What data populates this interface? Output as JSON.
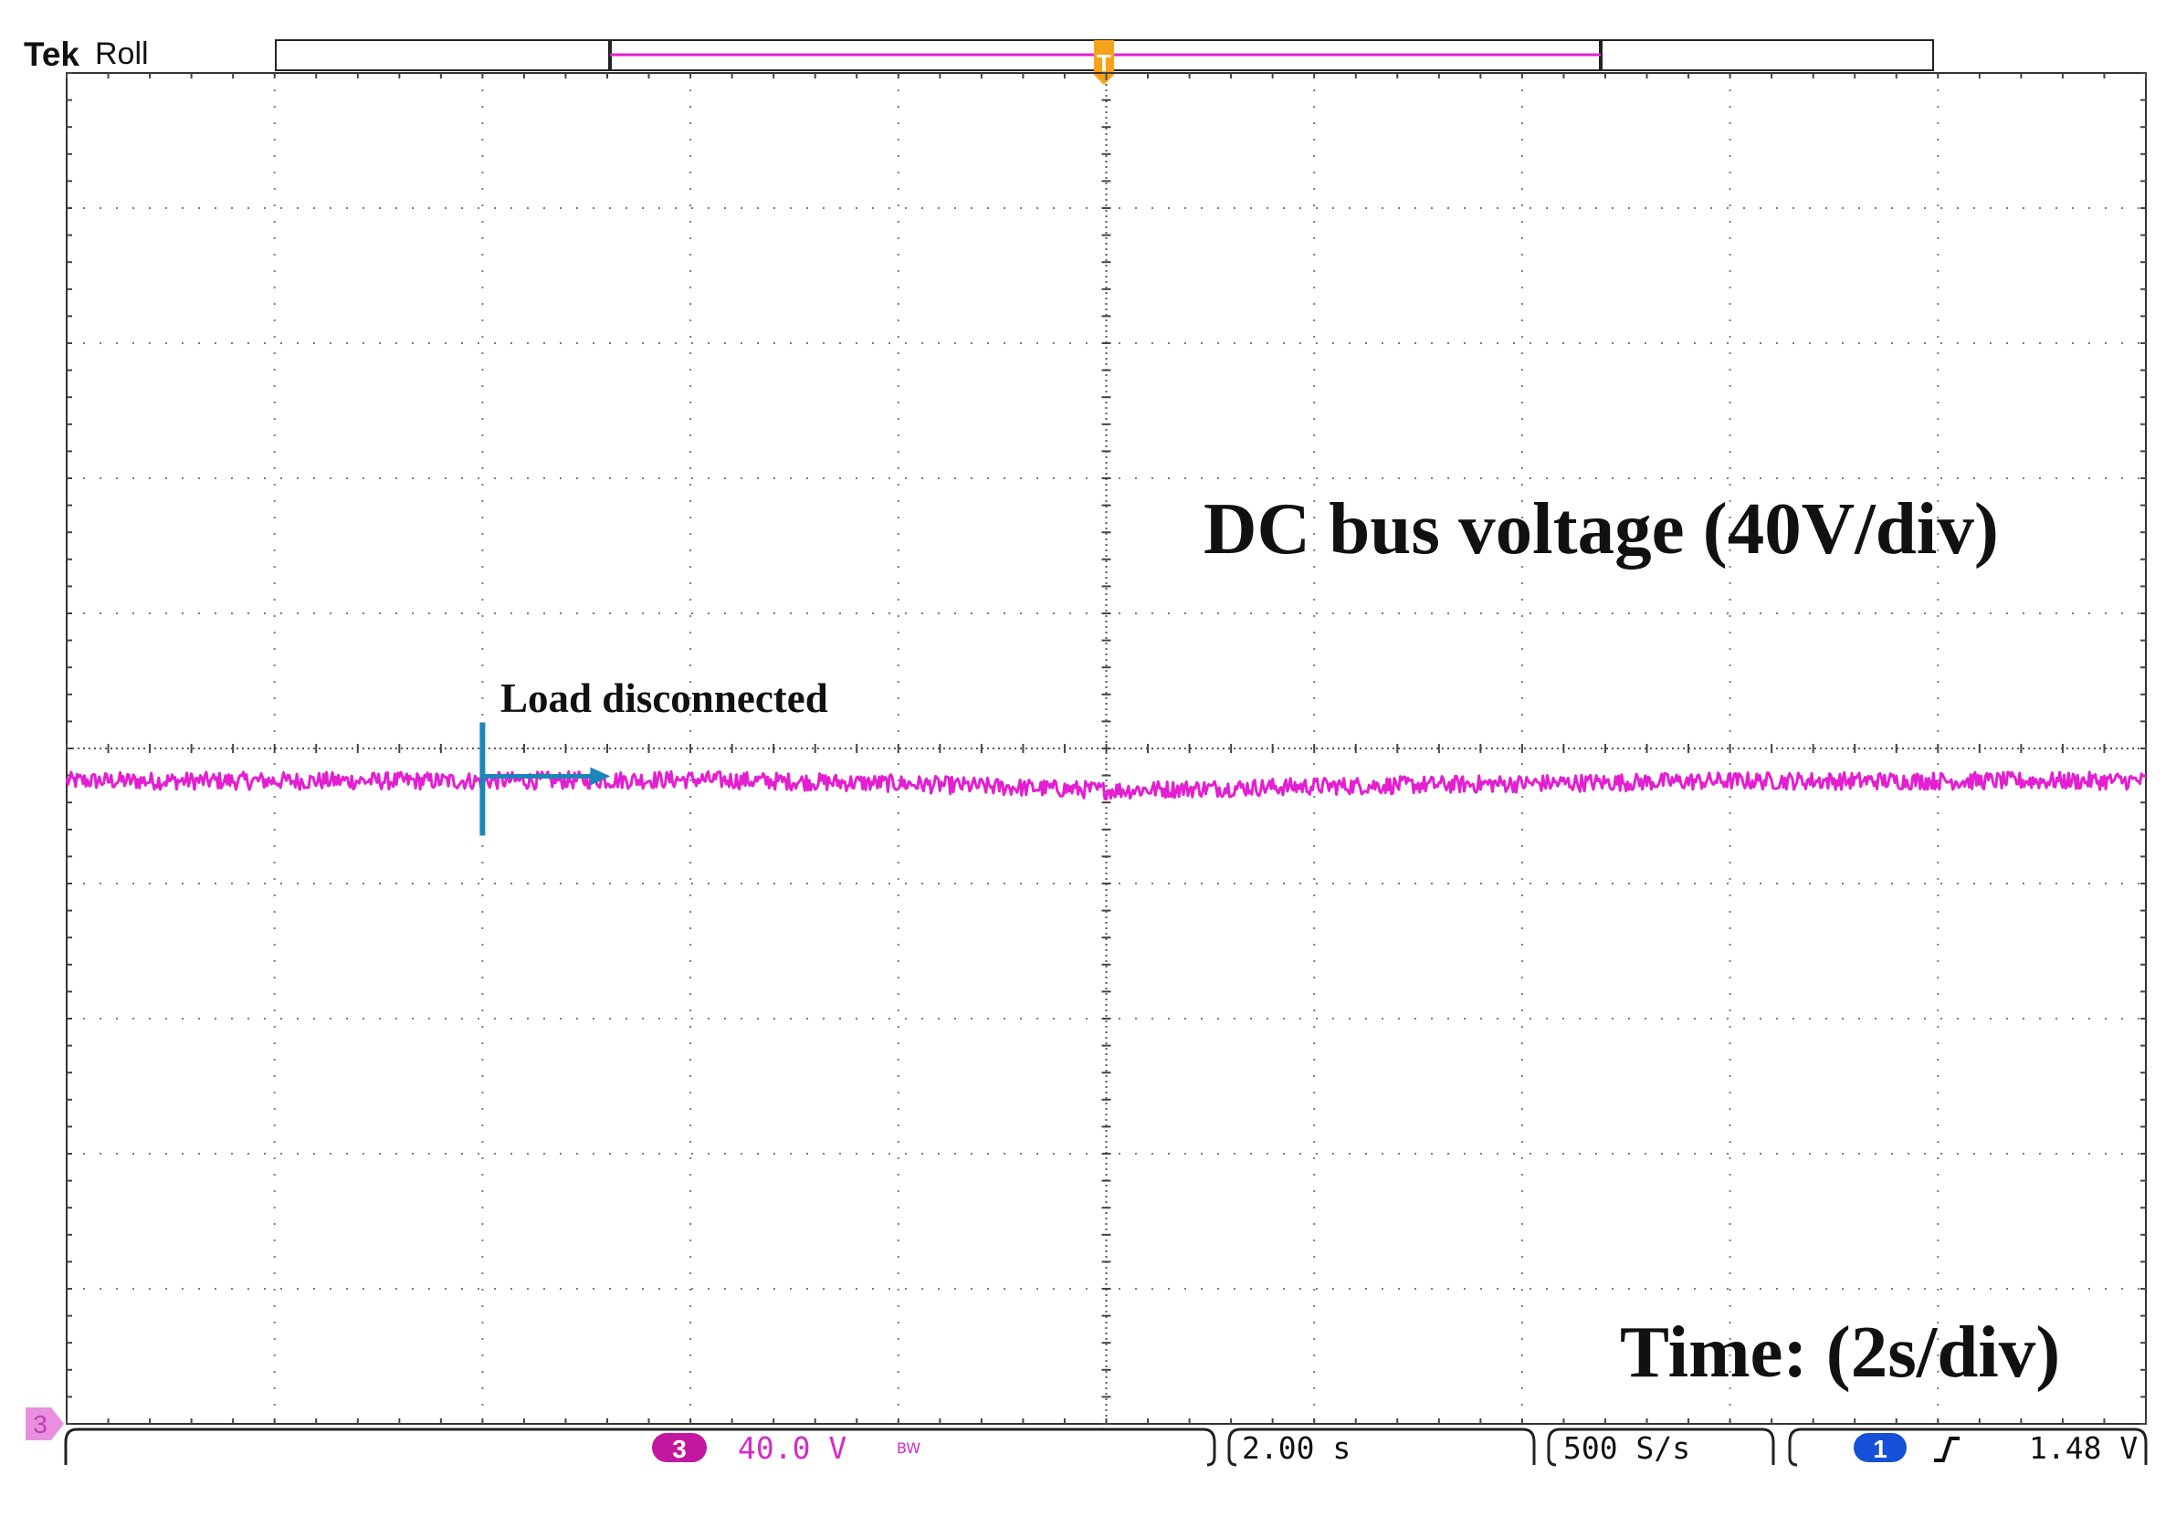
{
  "header": {
    "brand": "Tek",
    "mode": "Roll"
  },
  "annotations": {
    "signal_label": "DC bus voltage (40V/div)",
    "time_label": "Time: (2s/div)",
    "event_label": "Load disconnected"
  },
  "status_bar": {
    "channel_number": "3",
    "channel_scale": "40.0 V",
    "bandwidth_limit": "BW",
    "timebase": "2.00 s",
    "sample_rate": "500 S/s",
    "trigger_channel": "1",
    "trigger_slope_icon": "rising-edge-icon",
    "trigger_level": "1.48 V"
  },
  "chart_data": {
    "type": "line",
    "title": "",
    "xlabel": "Time: (2s/div)",
    "ylabel": "DC bus voltage (40V/div)",
    "grid": true,
    "divisions": {
      "horizontal": 10,
      "vertical": 10
    },
    "xlim": [
      -10,
      10
    ],
    "ylim": [
      -4,
      6
    ],
    "x_unit": "s",
    "y_unit": "div",
    "series": [
      {
        "name": "DC bus voltage (40V/div)",
        "color": "#e41fd2",
        "channel": "3",
        "x": [
          -10,
          -8,
          -6,
          -4,
          -2,
          0,
          2,
          4,
          6,
          8,
          10
        ],
        "y": [
          0.76,
          0.76,
          0.76,
          0.77,
          0.74,
          0.69,
          0.72,
          0.74,
          0.76,
          0.76,
          0.76
        ],
        "noise_pp_div": 0.13
      }
    ],
    "event": {
      "label": "Load disconnected",
      "x": -6,
      "color": "#1b87b8"
    },
    "channel_ground_marker": {
      "channel": "3",
      "y": -4
    },
    "trigger_position_x": 0,
    "colors": {
      "trace": "#e41fd2",
      "event": "#1b87b8",
      "trigger": "#f7a21b",
      "grid": "#7a7a7a"
    }
  }
}
